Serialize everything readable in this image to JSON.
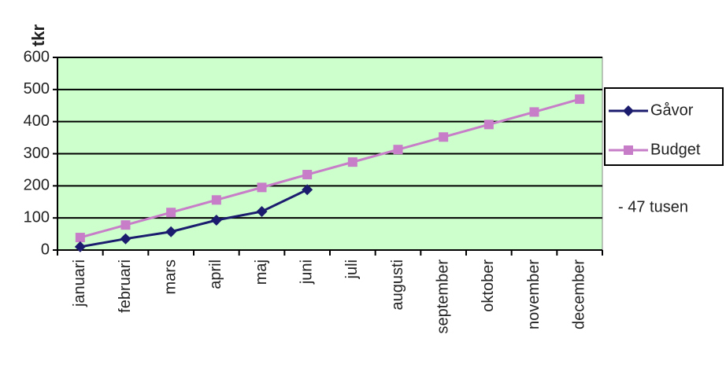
{
  "chart_data": {
    "type": "line",
    "y_label": "tkr",
    "categories": [
      "januari",
      "februari",
      "mars",
      "april",
      "maj",
      "juni",
      "juli",
      "augusti",
      "september",
      "oktober",
      "november",
      "december"
    ],
    "series": [
      {
        "name": "Gåvor",
        "color": "#1c1c6e",
        "marker": "diamond",
        "values": [
          10,
          35,
          57,
          93,
          120,
          188,
          null,
          null,
          null,
          null,
          null,
          null
        ]
      },
      {
        "name": "Budget",
        "color": "#c77dc7",
        "marker": "square",
        "values": [
          39,
          78,
          117,
          156,
          195,
          235,
          274,
          313,
          352,
          391,
          430,
          470
        ]
      }
    ],
    "ylim": [
      0,
      600
    ],
    "yticks": [
      0,
      100,
      200,
      300,
      400,
      500,
      600
    ],
    "grid": true,
    "plot_background": "#ccffcc",
    "legend": "right",
    "annotation": "- 47 tusen"
  }
}
